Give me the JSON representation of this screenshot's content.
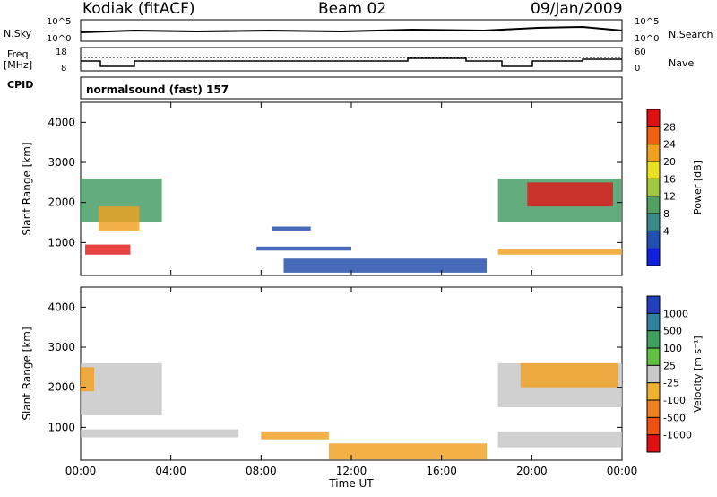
{
  "header": {
    "station": "Kodiak (fitACF)",
    "beam": "Beam 02",
    "date": "09/Jan/2009"
  },
  "panels": {
    "nsky": {
      "left_label": "N.Sky",
      "right_label": "N.Search",
      "left_ticks": [
        "10^5",
        "10^0"
      ],
      "right_ticks": [
        "10^5",
        "10^0"
      ]
    },
    "freq": {
      "left_label_1": "Freq.",
      "left_label_2": "[MHz]",
      "right_label": "Nave",
      "left_ticks": [
        "18",
        "8"
      ],
      "right_ticks": [
        "60",
        "0"
      ]
    },
    "cpid": {
      "label": "CPID",
      "value": "normalsound (fast) 157"
    }
  },
  "chart_data": [
    {
      "type": "heatmap",
      "name": "power",
      "ylabel": "Slant Range [km]",
      "yticks": [
        "4000",
        "3000",
        "2000",
        "1000"
      ],
      "ylim": [
        180,
        4500
      ],
      "colorbar": {
        "label": "Power [dB]",
        "ticks": [
          "28",
          "24",
          "20",
          "16",
          "12",
          "8",
          "4"
        ],
        "colors": [
          "#e01010",
          "#f06010",
          "#f0a020",
          "#e8e020",
          "#a0c840",
          "#50a060",
          "#3a8a8a",
          "#2050b0",
          "#1020e0"
        ]
      },
      "regions": [
        {
          "t0": 0.0,
          "t1": 3.6,
          "r0": 1500,
          "r1": 2600,
          "level": "green"
        },
        {
          "t0": 0.2,
          "t1": 2.2,
          "r0": 700,
          "r1": 950,
          "level": "red"
        },
        {
          "t0": 0.8,
          "t1": 2.6,
          "r0": 1300,
          "r1": 1900,
          "level": "orange"
        },
        {
          "t0": 7.8,
          "t1": 12.0,
          "r0": 800,
          "r1": 900,
          "level": "blue"
        },
        {
          "t0": 8.5,
          "t1": 10.2,
          "r0": 1300,
          "r1": 1400,
          "level": "blue"
        },
        {
          "t0": 9.0,
          "t1": 18.0,
          "r0": 250,
          "r1": 600,
          "level": "blue"
        },
        {
          "t0": 18.5,
          "t1": 24.0,
          "r0": 1500,
          "r1": 2600,
          "level": "green"
        },
        {
          "t0": 19.8,
          "t1": 23.6,
          "r0": 1900,
          "r1": 2500,
          "level": "red"
        },
        {
          "t0": 18.5,
          "t1": 24.0,
          "r0": 700,
          "r1": 850,
          "level": "orange"
        }
      ]
    },
    {
      "type": "heatmap",
      "name": "velocity",
      "ylabel": "Slant Range [km]",
      "xlabel": "Time UT",
      "xticks": [
        "00:00",
        "04:00",
        "08:00",
        "12:00",
        "16:00",
        "20:00",
        "00:00"
      ],
      "yticks": [
        "4000",
        "3000",
        "2000",
        "1000"
      ],
      "ylim": [
        180,
        4500
      ],
      "colorbar": {
        "label": "Velocity [m s⁻¹]",
        "ticks": [
          "1000",
          "500",
          "100",
          "25",
          "-25",
          "-100",
          "-500",
          "-1000"
        ],
        "colors": [
          "#2040c0",
          "#3080a0",
          "#40a060",
          "#60c040",
          "#c8c8c8",
          "#f0b030",
          "#f08020",
          "#f05010",
          "#e01010"
        ]
      },
      "regions": [
        {
          "t0": 0.0,
          "t1": 3.6,
          "r0": 1300,
          "r1": 2600,
          "level": "grey"
        },
        {
          "t0": 0.0,
          "t1": 0.6,
          "r0": 1900,
          "r1": 2500,
          "level": "orange"
        },
        {
          "t0": 0.0,
          "t1": 7.0,
          "r0": 750,
          "r1": 950,
          "level": "grey"
        },
        {
          "t0": 8.0,
          "t1": 11.0,
          "r0": 700,
          "r1": 900,
          "level": "orange"
        },
        {
          "t0": 11.0,
          "t1": 18.0,
          "r0": 200,
          "r1": 600,
          "level": "orange"
        },
        {
          "t0": 18.5,
          "t1": 24.0,
          "r0": 1500,
          "r1": 2600,
          "level": "grey"
        },
        {
          "t0": 19.5,
          "t1": 23.8,
          "r0": 2000,
          "r1": 2600,
          "level": "orange"
        },
        {
          "t0": 18.5,
          "t1": 24.0,
          "r0": 500,
          "r1": 900,
          "level": "grey"
        }
      ]
    }
  ]
}
